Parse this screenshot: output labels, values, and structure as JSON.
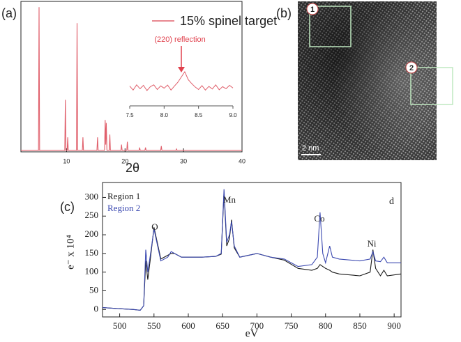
{
  "chart_data": [
    {
      "type": "line",
      "panel_label": "(a)",
      "x_label": "2θ",
      "x": [
        2.2,
        5.2,
        5.3,
        5.4,
        9.7,
        9.8,
        9.9,
        10.1,
        10.2,
        10.3,
        11.7,
        11.8,
        11.9,
        12.7,
        12.8,
        12.9,
        15.2,
        15.3,
        15.4,
        16.5,
        16.6,
        16.7,
        16.8,
        16.9,
        17.3,
        17.4,
        17.5,
        19.3,
        19.4,
        19.5,
        20.3,
        20.4,
        20.5,
        22.4,
        22.5,
        22.6,
        23.4,
        23.5,
        23.6,
        26.1,
        26.2,
        26.3,
        28.7,
        28.8,
        28.9,
        40
      ],
      "series": [
        {
          "name": "15% spinel target",
          "color": "#e0606c",
          "values": [
            1,
            1,
            100,
            1,
            1,
            36,
            1,
            1,
            10,
            1,
            1,
            89,
            1,
            1,
            10,
            1,
            1,
            10,
            1,
            1,
            22,
            5,
            20,
            1,
            1,
            12,
            1,
            1,
            5,
            1,
            1,
            7,
            1,
            1,
            3,
            1,
            1,
            3,
            1,
            1,
            4,
            1,
            1,
            2,
            1,
            1
          ]
        }
      ],
      "xlim": [
        2.2,
        40
      ],
      "xticks": [
        10,
        20,
        30,
        40
      ],
      "ylim": [
        0,
        104
      ],
      "legend": "upper right",
      "grid": false
    },
    {
      "type": "line",
      "annotation": "(220) reflection",
      "color": "#e0606c",
      "x": [
        7.5,
        7.55,
        7.6,
        7.65,
        7.7,
        7.75,
        7.8,
        7.85,
        7.9,
        7.95,
        8.0,
        8.05,
        8.1,
        8.15,
        8.2,
        8.25,
        8.3,
        8.35,
        8.4,
        8.45,
        8.5,
        8.55,
        8.6,
        8.65,
        8.7,
        8.75,
        8.8,
        8.85,
        8.9,
        8.95,
        9.0
      ],
      "values": [
        0.5,
        -1,
        1,
        -0.5,
        0.8,
        -1.2,
        0.3,
        1,
        -0.8,
        0.6,
        -0.3,
        0.9,
        -1,
        0.5,
        2,
        4,
        6,
        3,
        1.5,
        0.2,
        -0.8,
        0.7,
        -1,
        0.4,
        -0.6,
        1,
        -0.9,
        0.3,
        -0.5,
        0.8,
        -0.2
      ],
      "xlim": [
        7.5,
        9.0
      ],
      "xticks": [
        7.5,
        {
          "value": 8,
          "label": "8.0"
        },
        8.5,
        {
          "value": 9,
          "label": "9.0"
        }
      ],
      "ylim": [
        -6,
        10
      ]
    },
    {
      "type": "image",
      "panel_label": "(b)",
      "regions": [
        "1",
        "2"
      ],
      "scale_bar": "2 nm"
    },
    {
      "type": "line",
      "panel_label": "(c)",
      "corner_label": "d",
      "x_label": "eV",
      "y_label": "e⁻ x 10⁴",
      "annotations": [
        "O",
        "Mn",
        "Co",
        "Ni"
      ],
      "x": [
        475,
        500,
        520,
        530,
        535,
        538,
        541,
        545,
        550,
        553,
        560,
        570,
        575,
        580,
        590,
        600,
        620,
        640,
        648,
        652,
        656,
        660,
        663,
        667,
        675,
        700,
        720,
        740,
        760,
        780,
        788,
        792,
        796,
        800,
        806,
        810,
        820,
        850,
        865,
        869,
        873,
        880,
        885,
        890,
        910
      ],
      "series": [
        {
          "name": "Region 1",
          "color": "#1a1a1a",
          "values": [
            5,
            2,
            0,
            -2,
            10,
            130,
            80,
            140,
            220,
            195,
            135,
            145,
            150,
            150,
            140,
            140,
            140,
            142,
            148,
            315,
            170,
            190,
            240,
            165,
            140,
            150,
            140,
            132,
            110,
            105,
            110,
            120,
            115,
            110,
            105,
            100,
            95,
            90,
            100,
            160,
            110,
            90,
            105,
            90,
            95
          ]
        },
        {
          "name": "Region 2",
          "color": "#3a48b0",
          "values": [
            5,
            2,
            0,
            -2,
            10,
            160,
            100,
            150,
            215,
            190,
            130,
            140,
            155,
            150,
            140,
            140,
            140,
            142,
            150,
            322,
            180,
            200,
            235,
            170,
            140,
            150,
            140,
            135,
            115,
            120,
            140,
            260,
            150,
            125,
            170,
            140,
            135,
            130,
            135,
            155,
            130,
            128,
            140,
            125,
            125
          ]
        }
      ],
      "xlim": [
        475,
        910
      ],
      "xticks": [
        500,
        550,
        600,
        650,
        700,
        750,
        800,
        850,
        900
      ],
      "ylim": [
        -20,
        340
      ],
      "yticks": [
        0,
        50,
        100,
        150,
        200,
        250,
        300
      ],
      "legend": "upper left",
      "grid": false
    }
  ]
}
